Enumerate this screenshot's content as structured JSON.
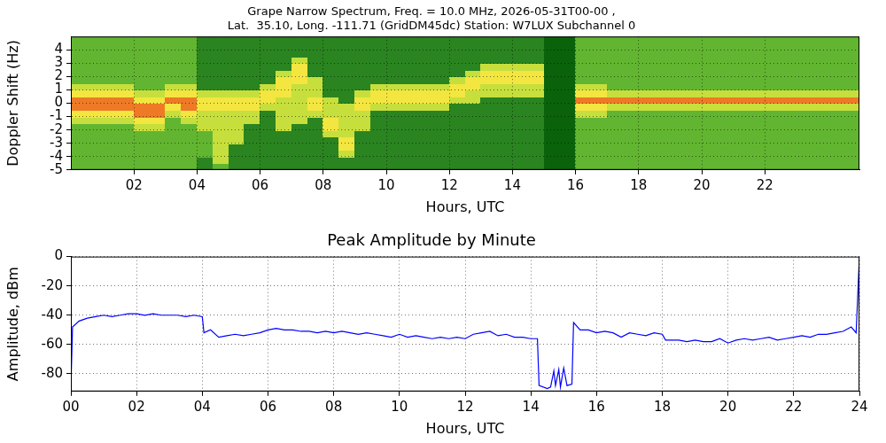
{
  "chart_data": [
    {
      "type": "heatmap",
      "title": [
        "Grape Narrow Spectrum, Freq. = 10.0 MHz, 2026-05-31T00-00 ,",
        "Lat.  35.10, Long. -111.71 (GridDM45dc) Station: W7LUX Subchannel 0"
      ],
      "x_label": "Hours, UTC",
      "y_label": "Doppler Shift (Hz)",
      "xlim": [
        0,
        25
      ],
      "ylim": [
        -5,
        5
      ],
      "xticks": [
        {
          "value": 2,
          "label": "02"
        },
        {
          "value": 4,
          "label": "04"
        },
        {
          "value": 6,
          "label": "06"
        },
        {
          "value": 8,
          "label": "08"
        },
        10,
        12,
        14,
        16,
        18,
        20,
        22
      ],
      "yticks": [
        -5,
        -4,
        -3,
        -2,
        -1,
        0,
        1,
        2,
        3,
        4
      ],
      "grid": true,
      "time_bins": [
        0,
        0.5,
        1,
        1.5,
        2,
        2.5,
        3,
        3.5,
        4,
        4.5,
        5,
        5.5,
        6,
        6.5,
        7,
        7.5,
        8,
        8.5,
        9,
        9.5,
        10,
        10.5,
        11,
        11.5,
        12,
        12.5,
        13,
        13.5,
        14,
        14.5,
        15,
        15.5,
        16,
        16.5,
        17,
        17.5,
        18,
        18.5,
        19,
        19.5,
        20,
        20.5,
        21,
        21.5,
        22,
        22.5,
        23,
        23.5,
        24,
        24.5,
        25
      ],
      "doppler_bins": [
        -5,
        -4.5,
        -4,
        -3.5,
        -3,
        -2.5,
        -2,
        -1.5,
        -1,
        -0.5,
        0,
        0.5,
        1,
        1.5,
        2,
        2.5,
        3,
        3.5,
        4,
        4.5,
        5
      ],
      "cells": [
        [
          2,
          2,
          2,
          2,
          2,
          2,
          2,
          3,
          4,
          5,
          5,
          4,
          3,
          2,
          2,
          2,
          2,
          2,
          2,
          2
        ],
        [
          2,
          2,
          2,
          2,
          2,
          2,
          2,
          3,
          4,
          5,
          5,
          4,
          3,
          2,
          2,
          2,
          2,
          2,
          2,
          2
        ],
        [
          2,
          2,
          2,
          2,
          2,
          2,
          2,
          3,
          4,
          5,
          5,
          4,
          3,
          2,
          2,
          2,
          2,
          2,
          2,
          2
        ],
        [
          2,
          2,
          2,
          2,
          2,
          2,
          2,
          3,
          4,
          5,
          5,
          4,
          3,
          2,
          2,
          2,
          2,
          2,
          2,
          2
        ],
        [
          2,
          2,
          2,
          2,
          2,
          2,
          3,
          4,
          5,
          5,
          4,
          3,
          2,
          2,
          2,
          2,
          2,
          2,
          2,
          2
        ],
        [
          2,
          2,
          2,
          2,
          2,
          2,
          3,
          4,
          5,
          5,
          4,
          3,
          2,
          2,
          2,
          2,
          2,
          2,
          2,
          2
        ],
        [
          2,
          2,
          2,
          2,
          2,
          2,
          2,
          2,
          3,
          4,
          5,
          4,
          3,
          2,
          2,
          2,
          2,
          2,
          2,
          2
        ],
        [
          2,
          2,
          2,
          2,
          2,
          2,
          2,
          3,
          4,
          5,
          5,
          4,
          3,
          2,
          2,
          2,
          2,
          2,
          2,
          2
        ],
        [
          1,
          1,
          2,
          2,
          2,
          2,
          3,
          3,
          3,
          4,
          4,
          3,
          1,
          1,
          1,
          1,
          1,
          1,
          1,
          1
        ],
        [
          2,
          3,
          3,
          3,
          3,
          3,
          3,
          3,
          3,
          4,
          4,
          3,
          1,
          1,
          1,
          1,
          1,
          1,
          1,
          1
        ],
        [
          1,
          1,
          1,
          1,
          3,
          3,
          3,
          3,
          3,
          4,
          4,
          3,
          1,
          1,
          1,
          1,
          1,
          1,
          1,
          1
        ],
        [
          1,
          1,
          1,
          1,
          1,
          1,
          1,
          3,
          3,
          4,
          4,
          3,
          1,
          1,
          1,
          1,
          1,
          1,
          1,
          1
        ],
        [
          1,
          1,
          1,
          1,
          1,
          1,
          1,
          1,
          1,
          3,
          4,
          4,
          3,
          1,
          1,
          1,
          1,
          1,
          1,
          1
        ],
        [
          1,
          1,
          1,
          1,
          1,
          1,
          3,
          3,
          3,
          3,
          3,
          4,
          4,
          4,
          3,
          1,
          1,
          1,
          1,
          1
        ],
        [
          1,
          1,
          1,
          1,
          1,
          1,
          1,
          3,
          3,
          3,
          3,
          3,
          3,
          4,
          4,
          4,
          3,
          1,
          1,
          1
        ],
        [
          1,
          1,
          1,
          1,
          1,
          1,
          1,
          1,
          3,
          4,
          4,
          3,
          3,
          3,
          1,
          1,
          1,
          1,
          1,
          1
        ],
        [
          1,
          1,
          1,
          1,
          1,
          3,
          4,
          4,
          3,
          3,
          3,
          1,
          1,
          1,
          1,
          1,
          1,
          1,
          1,
          1
        ],
        [
          1,
          1,
          3,
          4,
          4,
          3,
          3,
          3,
          3,
          3,
          1,
          1,
          1,
          1,
          1,
          1,
          1,
          1,
          1,
          1
        ],
        [
          1,
          1,
          1,
          1,
          1,
          1,
          3,
          3,
          3,
          4,
          4,
          3,
          1,
          1,
          1,
          1,
          1,
          1,
          1,
          1
        ],
        [
          1,
          1,
          1,
          1,
          1,
          1,
          1,
          1,
          1,
          3,
          4,
          4,
          3,
          1,
          1,
          1,
          1,
          1,
          1,
          1
        ],
        [
          1,
          1,
          1,
          1,
          1,
          1,
          1,
          1,
          1,
          3,
          4,
          4,
          3,
          1,
          1,
          1,
          1,
          1,
          1,
          1
        ],
        [
          1,
          1,
          1,
          1,
          1,
          1,
          1,
          1,
          1,
          3,
          4,
          4,
          3,
          1,
          1,
          1,
          1,
          1,
          1,
          1
        ],
        [
          1,
          1,
          1,
          1,
          1,
          1,
          1,
          1,
          1,
          3,
          4,
          4,
          3,
          1,
          1,
          1,
          1,
          1,
          1,
          1
        ],
        [
          1,
          1,
          1,
          1,
          1,
          1,
          1,
          1,
          1,
          3,
          4,
          4,
          3,
          1,
          1,
          1,
          1,
          1,
          1,
          1
        ],
        [
          1,
          1,
          1,
          1,
          1,
          1,
          1,
          1,
          1,
          1,
          3,
          4,
          4,
          3,
          1,
          1,
          1,
          1,
          1,
          1
        ],
        [
          1,
          1,
          1,
          1,
          1,
          1,
          1,
          1,
          1,
          1,
          3,
          3,
          4,
          4,
          3,
          1,
          1,
          1,
          1,
          1
        ],
        [
          1,
          1,
          1,
          1,
          1,
          1,
          1,
          1,
          1,
          1,
          1,
          3,
          3,
          4,
          4,
          3,
          1,
          1,
          1,
          1
        ],
        [
          1,
          1,
          1,
          1,
          1,
          1,
          1,
          1,
          1,
          1,
          1,
          3,
          3,
          4,
          4,
          3,
          1,
          1,
          1,
          1
        ],
        [
          1,
          1,
          1,
          1,
          1,
          1,
          1,
          1,
          1,
          1,
          1,
          3,
          3,
          4,
          4,
          3,
          1,
          1,
          1,
          1
        ],
        [
          1,
          1,
          1,
          1,
          1,
          1,
          1,
          1,
          1,
          1,
          1,
          3,
          3,
          4,
          4,
          3,
          1,
          1,
          1,
          1
        ],
        [
          0,
          0,
          0,
          0,
          0,
          0,
          0,
          0,
          0,
          0,
          0,
          0,
          0,
          0,
          0,
          0,
          0,
          0,
          0,
          0
        ],
        [
          0,
          0,
          0,
          0,
          0,
          0,
          0,
          0,
          0,
          0,
          0,
          0,
          0,
          0,
          0,
          0,
          0,
          0,
          0,
          0
        ],
        [
          2,
          2,
          2,
          2,
          2,
          2,
          2,
          2,
          3,
          4,
          5,
          4,
          3,
          2,
          2,
          2,
          2,
          2,
          2,
          2
        ],
        [
          2,
          2,
          2,
          2,
          2,
          2,
          2,
          2,
          3,
          4,
          5,
          4,
          3,
          2,
          2,
          2,
          2,
          2,
          2,
          2
        ],
        [
          2,
          2,
          2,
          2,
          2,
          2,
          2,
          2,
          2,
          3,
          5,
          3,
          2,
          2,
          2,
          2,
          2,
          2,
          2,
          2
        ],
        [
          2,
          2,
          2,
          2,
          2,
          2,
          2,
          2,
          2,
          3,
          5,
          3,
          2,
          2,
          2,
          2,
          2,
          2,
          2,
          2
        ],
        [
          2,
          2,
          2,
          2,
          2,
          2,
          2,
          2,
          2,
          3,
          5,
          3,
          2,
          2,
          2,
          2,
          2,
          2,
          2,
          2
        ],
        [
          2,
          2,
          2,
          2,
          2,
          2,
          2,
          2,
          2,
          3,
          5,
          3,
          2,
          2,
          2,
          2,
          2,
          2,
          2,
          2
        ],
        [
          2,
          2,
          2,
          2,
          2,
          2,
          2,
          2,
          2,
          3,
          5,
          3,
          2,
          2,
          2,
          2,
          2,
          2,
          2,
          2
        ],
        [
          2,
          2,
          2,
          2,
          2,
          2,
          2,
          2,
          2,
          3,
          5,
          3,
          2,
          2,
          2,
          2,
          2,
          2,
          2,
          2
        ],
        [
          2,
          2,
          2,
          2,
          2,
          2,
          2,
          2,
          2,
          3,
          5,
          3,
          2,
          2,
          2,
          2,
          2,
          2,
          2,
          2
        ],
        [
          2,
          2,
          2,
          2,
          2,
          2,
          2,
          2,
          2,
          3,
          5,
          3,
          2,
          2,
          2,
          2,
          2,
          2,
          2,
          2
        ],
        [
          2,
          2,
          2,
          2,
          2,
          2,
          2,
          2,
          2,
          3,
          5,
          3,
          2,
          2,
          2,
          2,
          2,
          2,
          2,
          2
        ],
        [
          2,
          2,
          2,
          2,
          2,
          2,
          2,
          2,
          2,
          3,
          5,
          3,
          2,
          2,
          2,
          2,
          2,
          2,
          2,
          2
        ],
        [
          2,
          2,
          2,
          2,
          2,
          2,
          2,
          2,
          2,
          3,
          5,
          3,
          2,
          2,
          2,
          2,
          2,
          2,
          2,
          2
        ],
        [
          2,
          2,
          2,
          2,
          2,
          2,
          2,
          2,
          2,
          3,
          5,
          3,
          2,
          2,
          2,
          2,
          2,
          2,
          2,
          2
        ],
        [
          2,
          2,
          2,
          2,
          2,
          2,
          2,
          2,
          2,
          3,
          5,
          3,
          2,
          2,
          2,
          2,
          2,
          2,
          2,
          2
        ],
        [
          2,
          2,
          2,
          2,
          2,
          2,
          2,
          2,
          2,
          3,
          5,
          3,
          2,
          2,
          2,
          2,
          2,
          2,
          2,
          2
        ],
        [
          2,
          2,
          2,
          2,
          2,
          2,
          2,
          2,
          2,
          3,
          5,
          3,
          2,
          2,
          2,
          2,
          2,
          2,
          2,
          2
        ],
        [
          2,
          2,
          2,
          2,
          2,
          2,
          2,
          2,
          2,
          3,
          5,
          3,
          2,
          2,
          2,
          2,
          2,
          2,
          2,
          2
        ]
      ]
    },
    {
      "type": "line",
      "title": "Peak Amplitude by Minute",
      "x_label": "Hours, UTC",
      "y_label": "Amplitude, dBm",
      "xlim": [
        0,
        24
      ],
      "ylim": [
        -92,
        0
      ],
      "xticks": [
        {
          "value": 0,
          "label": "00"
        },
        {
          "value": 2,
          "label": "02"
        },
        {
          "value": 4,
          "label": "04"
        },
        {
          "value": 6,
          "label": "06"
        },
        {
          "value": 8,
          "label": "08"
        },
        10,
        12,
        14,
        16,
        18,
        20,
        22,
        24
      ],
      "yticks": [
        -80,
        -60,
        -40,
        -20,
        0
      ],
      "grid": true,
      "color": "#0000ff",
      "x": [
        0,
        0.05,
        0.25,
        0.5,
        0.75,
        1,
        1.25,
        1.5,
        1.75,
        2,
        2.25,
        2.5,
        2.75,
        3,
        3.25,
        3.5,
        3.75,
        4,
        4.05,
        4.25,
        4.5,
        4.75,
        5,
        5.25,
        5.5,
        5.75,
        6,
        6.25,
        6.5,
        6.75,
        7,
        7.25,
        7.5,
        7.75,
        8,
        8.25,
        8.5,
        8.75,
        9,
        9.25,
        9.5,
        9.75,
        10,
        10.25,
        10.5,
        10.75,
        11,
        11.25,
        11.5,
        11.75,
        12,
        12.25,
        12.5,
        12.75,
        13,
        13.25,
        13.5,
        13.75,
        14,
        14.2,
        14.25,
        14.5,
        14.6,
        14.7,
        14.75,
        14.85,
        14.9,
        15,
        15.1,
        15.25,
        15.3,
        15.5,
        15.75,
        16,
        16.25,
        16.5,
        16.75,
        17,
        17.25,
        17.5,
        17.75,
        18,
        18.1,
        18.5,
        18.75,
        19,
        19.25,
        19.5,
        19.75,
        20,
        20.25,
        20.5,
        20.75,
        21,
        21.25,
        21.5,
        21.75,
        22,
        22.25,
        22.5,
        22.75,
        23,
        23.25,
        23.5,
        23.75,
        23.9,
        24
      ],
      "values": [
        -90,
        -48,
        -44,
        -42,
        -41,
        -40,
        -41,
        -40,
        -39,
        -39,
        -40,
        -39,
        -40,
        -40,
        -40,
        -41,
        -40,
        -41,
        -52,
        -50,
        -55,
        -54,
        -53,
        -54,
        -53,
        -52,
        -50,
        -49,
        -50,
        -50,
        -51,
        -51,
        -52,
        -51,
        -52,
        -51,
        -52,
        -53,
        -52,
        -53,
        -54,
        -55,
        -53,
        -55,
        -54,
        -55,
        -56,
        -55,
        -56,
        -55,
        -56,
        -53,
        -52,
        -51,
        -54,
        -53,
        -55,
        -55,
        -56,
        -56,
        -88,
        -90,
        -89,
        -78,
        -88,
        -77,
        -89,
        -76,
        -88,
        -87,
        -45,
        -50,
        -50,
        -52,
        -51,
        -52,
        -55,
        -52,
        -53,
        -54,
        -52,
        -53,
        -57,
        -57,
        -58,
        -57,
        -58,
        -58,
        -56,
        -59,
        -57,
        -56,
        -57,
        -56,
        -55,
        -57,
        -56,
        -55,
        -54,
        -55,
        -53,
        -53,
        -52,
        -51,
        -48,
        -52,
        0
      ]
    }
  ]
}
